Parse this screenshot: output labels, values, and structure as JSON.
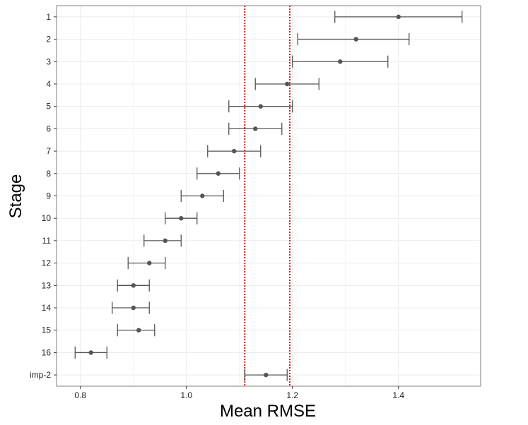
{
  "chart_data": {
    "type": "errorbar",
    "orientation": "horizontal",
    "xlabel": "Mean RMSE",
    "ylabel": "Stage",
    "xlim": [
      0.755,
      1.555
    ],
    "xticks": [
      0.8,
      1.0,
      1.2,
      1.4
    ],
    "xtick_labels": [
      "0.8",
      "1.0",
      "1.2",
      "1.4"
    ],
    "grid": true,
    "categories": [
      "1",
      "2",
      "3",
      "4",
      "5",
      "6",
      "7",
      "8",
      "9",
      "10",
      "11",
      "12",
      "13",
      "14",
      "15",
      "16",
      "imp-2"
    ],
    "means": [
      1.4,
      1.32,
      1.29,
      1.19,
      1.14,
      1.13,
      1.09,
      1.06,
      1.03,
      0.99,
      0.96,
      0.93,
      0.9,
      0.9,
      0.91,
      0.82,
      1.15
    ],
    "lower": [
      1.28,
      1.21,
      1.2,
      1.13,
      1.08,
      1.08,
      1.04,
      1.02,
      0.99,
      0.96,
      0.92,
      0.89,
      0.87,
      0.86,
      0.87,
      0.79,
      1.11
    ],
    "upper": [
      1.52,
      1.42,
      1.38,
      1.25,
      1.2,
      1.18,
      1.14,
      1.1,
      1.07,
      1.02,
      0.99,
      0.96,
      0.93,
      0.93,
      0.94,
      0.85,
      1.19
    ],
    "reference_lines": [
      1.11,
      1.195
    ],
    "colors": {
      "errorbar": "#555555",
      "point": "#555555",
      "reference_line": "#e41a1c",
      "grid": "#ebebeb",
      "panel_border": "#7f7f7f"
    }
  }
}
